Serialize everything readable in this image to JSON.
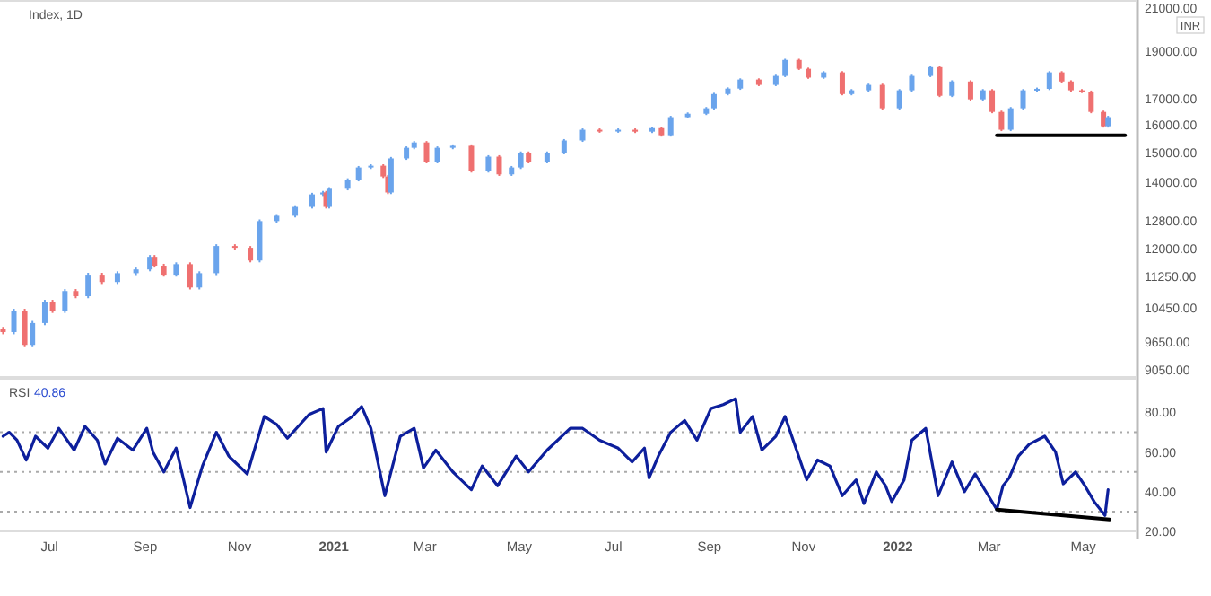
{
  "chart_data": [
    {
      "type": "candlestick",
      "title": "Index, 1D",
      "ylabel": "INR",
      "log": true,
      "tick_labels": "y",
      "xlim": [
        "2020-05-30",
        "2022-06-05"
      ],
      "ylim": [
        8900,
        21350
      ],
      "yticks": [
        {
          "value": 9050,
          "label": "9050.00"
        },
        {
          "value": 9650,
          "label": "9650.00"
        },
        {
          "value": 10450,
          "label": "10450.00"
        },
        {
          "value": 11250,
          "label": "11250.00"
        },
        {
          "value": 12000,
          "label": "12000.00"
        },
        {
          "value": 12800,
          "label": "12800.00"
        },
        {
          "value": 14000,
          "label": "14000.00"
        },
        {
          "value": 15000,
          "label": "15000.00"
        },
        {
          "value": 16000,
          "label": "16000.00"
        },
        {
          "value": 17000,
          "label": "17000.00"
        },
        {
          "value": 19000,
          "label": "19000.00"
        },
        {
          "value": 21000,
          "label": "21000.00"
        }
      ],
      "x": [
        "2020-06-01",
        "2020-06-08",
        "2020-06-15",
        "2020-06-20",
        "2020-06-28",
        "2020-07-03",
        "2020-07-11",
        "2020-07-18",
        "2020-07-26",
        "2020-08-04",
        "2020-08-14",
        "2020-08-26",
        "2020-09-04",
        "2020-09-07",
        "2020-09-13",
        "2020-09-21",
        "2020-09-30",
        "2020-10-06",
        "2020-10-17",
        "2020-10-29",
        "2020-11-08",
        "2020-11-14",
        "2020-11-25",
        "2020-12-07",
        "2020-12-18",
        "2020-12-25",
        "2020-12-27",
        "2020-12-29",
        "2021-01-10",
        "2021-01-17",
        "2021-01-25",
        "2021-02-02",
        "2021-02-05",
        "2021-02-07",
        "2021-02-17",
        "2021-02-22",
        "2021-03-02",
        "2021-03-09",
        "2021-03-19",
        "2021-03-31",
        "2021-04-11",
        "2021-04-18",
        "2021-04-26",
        "2021-05-02",
        "2021-05-07",
        "2021-05-19",
        "2021-05-30",
        "2021-06-11",
        "2021-06-22",
        "2021-07-04",
        "2021-07-15",
        "2021-07-26",
        "2021-08-01",
        "2021-08-07",
        "2021-08-18",
        "2021-08-30",
        "2021-09-04",
        "2021-09-13",
        "2021-09-21",
        "2021-10-03",
        "2021-10-14",
        "2021-10-20",
        "2021-10-29",
        "2021-11-04",
        "2021-11-14",
        "2021-11-26",
        "2021-12-02",
        "2021-12-13",
        "2021-12-22",
        "2022-01-02",
        "2022-01-10",
        "2022-01-22",
        "2022-01-28",
        "2022-02-05",
        "2022-02-17",
        "2022-02-25",
        "2022-03-03",
        "2022-03-09",
        "2022-03-15",
        "2022-03-23",
        "2022-04-01",
        "2022-04-09",
        "2022-04-17",
        "2022-04-23",
        "2022-04-30",
        "2022-05-06",
        "2022-05-14",
        "2022-05-17"
      ],
      "ohlc": [
        [
          9950,
          10000,
          9830,
          9880
        ],
        [
          9880,
          10430,
          9830,
          10380
        ],
        [
          10380,
          10430,
          9540,
          9590
        ],
        [
          9590,
          10140,
          9540,
          10090
        ],
        [
          10090,
          10650,
          10040,
          10600
        ],
        [
          10600,
          10650,
          10330,
          10380
        ],
        [
          10380,
          10920,
          10330,
          10870
        ],
        [
          10870,
          10920,
          10690,
          10740
        ],
        [
          10740,
          11340,
          10690,
          11290
        ],
        [
          11290,
          11340,
          11050,
          11100
        ],
        [
          11100,
          11380,
          11050,
          11330
        ],
        [
          11330,
          11480,
          11280,
          11430
        ],
        [
          11430,
          11820,
          11380,
          11770
        ],
        [
          11770,
          11820,
          11480,
          11530
        ],
        [
          11530,
          11580,
          11240,
          11290
        ],
        [
          11290,
          11620,
          11240,
          11570
        ],
        [
          11570,
          11620,
          10910,
          10960
        ],
        [
          10960,
          11380,
          10910,
          11330
        ],
        [
          11330,
          12120,
          11280,
          12070
        ],
        [
          12070,
          12120,
          11970,
          12020
        ],
        [
          12020,
          12070,
          11620,
          11670
        ],
        [
          11670,
          12840,
          11620,
          12790
        ],
        [
          12790,
          13000,
          12740,
          12950
        ],
        [
          12950,
          13270,
          12900,
          13220
        ],
        [
          13220,
          13660,
          13170,
          13610
        ],
        [
          13610,
          13720,
          13560,
          13670
        ],
        [
          13670,
          13720,
          13170,
          13220
        ],
        [
          13220,
          13840,
          13170,
          13790
        ],
        [
          13790,
          14130,
          13740,
          14080
        ],
        [
          14080,
          14540,
          14030,
          14490
        ],
        [
          14490,
          14600,
          14440,
          14550
        ],
        [
          14550,
          14600,
          14140,
          14190
        ],
        [
          14190,
          14240,
          13620,
          13670
        ],
        [
          13670,
          14850,
          13620,
          14800
        ],
        [
          14800,
          15220,
          14750,
          15170
        ],
        [
          15170,
          15410,
          15120,
          15360
        ],
        [
          15360,
          15410,
          14630,
          14680
        ],
        [
          14680,
          15220,
          14630,
          15170
        ],
        [
          15170,
          15290,
          15120,
          15240
        ],
        [
          15240,
          15290,
          14320,
          14370
        ],
        [
          14370,
          14910,
          14320,
          14860
        ],
        [
          14860,
          14910,
          14210,
          14260
        ],
        [
          14260,
          14540,
          14210,
          14490
        ],
        [
          14490,
          15040,
          14440,
          14990
        ],
        [
          14990,
          15040,
          14630,
          14680
        ],
        [
          14680,
          15040,
          14630,
          14990
        ],
        [
          14990,
          15480,
          14940,
          15430
        ],
        [
          15430,
          15870,
          15380,
          15820
        ],
        [
          15820,
          15870,
          15710,
          15760
        ],
        [
          15760,
          15870,
          15710,
          15820
        ],
        [
          15820,
          15870,
          15700,
          15750
        ],
        [
          15750,
          15930,
          15700,
          15880
        ],
        [
          15880,
          15930,
          15570,
          15620
        ],
        [
          15620,
          16340,
          15570,
          16290
        ],
        [
          16290,
          16470,
          16240,
          16420
        ],
        [
          16420,
          16680,
          16370,
          16630
        ],
        [
          16630,
          17240,
          16580,
          17190
        ],
        [
          17190,
          17460,
          17140,
          17410
        ],
        [
          17410,
          17830,
          17360,
          17780
        ],
        [
          17780,
          17830,
          17510,
          17560
        ],
        [
          17560,
          17980,
          17510,
          17930
        ],
        [
          17930,
          18660,
          17880,
          18610
        ],
        [
          18610,
          18660,
          18180,
          18230
        ],
        [
          18230,
          18280,
          17810,
          17860
        ],
        [
          17860,
          18130,
          17810,
          18080
        ],
        [
          18080,
          18130,
          17140,
          17190
        ],
        [
          17190,
          17390,
          17140,
          17340
        ],
        [
          17340,
          17610,
          17290,
          17560
        ],
        [
          17560,
          17610,
          16580,
          16630
        ],
        [
          16630,
          17390,
          16580,
          17340
        ],
        [
          17340,
          17980,
          17290,
          17930
        ],
        [
          17930,
          18350,
          17880,
          18300
        ],
        [
          18300,
          18350,
          17070,
          17120
        ],
        [
          17120,
          17750,
          17070,
          17700
        ],
        [
          17700,
          17750,
          16930,
          16980
        ],
        [
          16980,
          17390,
          16930,
          17340
        ],
        [
          17340,
          17390,
          16440,
          16490
        ],
        [
          16490,
          16540,
          15770,
          15820
        ],
        [
          15820,
          16680,
          15770,
          16630
        ],
        [
          16630,
          17390,
          16580,
          17340
        ],
        [
          17340,
          17450,
          17290,
          17400
        ],
        [
          17400,
          18130,
          17350,
          18080
        ],
        [
          18080,
          18130,
          17650,
          17700
        ],
        [
          17700,
          17750,
          17290,
          17340
        ],
        [
          17340,
          17390,
          17230,
          17280
        ],
        [
          17280,
          17330,
          16440,
          16490
        ],
        [
          16490,
          16540,
          15900,
          15950
        ],
        [
          15950,
          16340,
          15900,
          16290
        ]
      ],
      "colors": [
        "#ef7070",
        "#6aa4ec",
        "#ef7070",
        "#6aa4ec",
        "#6aa4ec",
        "#ef7070",
        "#6aa4ec",
        "#ef7070",
        "#6aa4ec",
        "#ef7070",
        "#6aa4ec",
        "#6aa4ec",
        "#6aa4ec",
        "#ef7070",
        "#ef7070",
        "#6aa4ec",
        "#ef7070",
        "#6aa4ec",
        "#6aa4ec",
        "#ef7070",
        "#ef7070",
        "#6aa4ec",
        "#6aa4ec",
        "#6aa4ec",
        "#6aa4ec",
        "#6aa4ec",
        "#ef7070",
        "#6aa4ec",
        "#6aa4ec",
        "#6aa4ec",
        "#6aa4ec",
        "#ef7070",
        "#ef7070",
        "#6aa4ec",
        "#6aa4ec",
        "#6aa4ec",
        "#ef7070",
        "#6aa4ec",
        "#6aa4ec",
        "#ef7070",
        "#6aa4ec",
        "#ef7070",
        "#6aa4ec",
        "#6aa4ec",
        "#ef7070",
        "#6aa4ec",
        "#6aa4ec",
        "#6aa4ec",
        "#ef7070",
        "#6aa4ec",
        "#ef7070",
        "#6aa4ec",
        "#ef7070",
        "#6aa4ec",
        "#6aa4ec",
        "#6aa4ec",
        "#6aa4ec",
        "#6aa4ec",
        "#6aa4ec",
        "#ef7070",
        "#6aa4ec",
        "#6aa4ec",
        "#ef7070",
        "#ef7070",
        "#6aa4ec",
        "#ef7070",
        "#6aa4ec",
        "#6aa4ec",
        "#ef7070",
        "#6aa4ec",
        "#6aa4ec",
        "#6aa4ec",
        "#ef7070",
        "#6aa4ec",
        "#ef7070",
        "#6aa4ec",
        "#ef7070",
        "#ef7070",
        "#6aa4ec",
        "#6aa4ec",
        "#6aa4ec",
        "#6aa4ec",
        "#ef7070",
        "#ef7070",
        "#ef7070",
        "#ef7070",
        "#ef7070",
        "#6aa4ec"
      ],
      "series": [
        {
          "type": "line",
          "color": "#000000",
          "x": [
            "2022-03-06",
            "2022-05-28"
          ],
          "values": [
            15620,
            15620
          ]
        }
      ]
    },
    {
      "type": "line",
      "title": "RSI",
      "annotations": [
        "40.86"
      ],
      "xlim": [
        "2020-05-30",
        "2022-06-05"
      ],
      "ylim": [
        20,
        97
      ],
      "yticks": [
        {
          "value": 20,
          "label": "20.00"
        },
        {
          "value": 40,
          "label": "40.00"
        },
        {
          "value": 60,
          "label": "60.00"
        },
        {
          "value": 80,
          "label": "80.00"
        }
      ],
      "xticks": [
        {
          "value": "2020-07-01",
          "label": "Jul"
        },
        {
          "value": "2020-09-01",
          "label": "Sep"
        },
        {
          "value": "2020-11-01",
          "label": "Nov"
        },
        {
          "value": "2021-01-01",
          "label": "2021"
        },
        {
          "value": "2021-03-01",
          "label": "Mar"
        },
        {
          "value": "2021-05-01",
          "label": "May"
        },
        {
          "value": "2021-07-01",
          "label": "Jul"
        },
        {
          "value": "2021-09-01",
          "label": "Sep"
        },
        {
          "value": "2021-11-01",
          "label": "Nov"
        },
        {
          "value": "2022-01-01",
          "label": "2022"
        },
        {
          "value": "2022-03-01",
          "label": "Mar"
        },
        {
          "value": "2022-05-01",
          "label": "May"
        }
      ],
      "ref_lines": [
        {
          "axis": "y",
          "value": 70,
          "color": "#aaaaaa",
          "line_style": "dotted"
        },
        {
          "axis": "y",
          "value": 50,
          "color": "#aaaaaa",
          "line_style": "dotted"
        },
        {
          "axis": "y",
          "value": 30,
          "color": "#aaaaaa",
          "line_style": "dotted"
        }
      ],
      "series": [
        {
          "color": "#0d1f9c",
          "x": [
            "2020-06-01",
            "2020-06-05",
            "2020-06-10",
            "2020-06-16",
            "2020-06-22",
            "2020-06-30",
            "2020-07-07",
            "2020-07-17",
            "2020-07-24",
            "2020-08-01",
            "2020-08-06",
            "2020-08-14",
            "2020-08-24",
            "2020-09-02",
            "2020-09-06",
            "2020-09-13",
            "2020-09-21",
            "2020-09-30",
            "2020-10-08",
            "2020-10-17",
            "2020-10-25",
            "2020-11-06",
            "2020-11-17",
            "2020-11-25",
            "2020-12-02",
            "2020-12-16",
            "2020-12-25",
            "2020-12-27",
            "2021-01-04",
            "2021-01-13",
            "2021-01-19",
            "2021-01-25",
            "2021-02-03",
            "2021-02-13",
            "2021-02-22",
            "2021-02-28",
            "2021-03-08",
            "2021-03-19",
            "2021-03-31",
            "2021-04-07",
            "2021-04-17",
            "2021-04-29",
            "2021-05-07",
            "2021-05-19",
            "2021-06-03",
            "2021-06-11",
            "2021-06-22",
            "2021-07-04",
            "2021-07-13",
            "2021-07-21",
            "2021-07-24",
            "2021-07-30",
            "2021-08-07",
            "2021-08-16",
            "2021-08-24",
            "2021-09-02",
            "2021-09-10",
            "2021-09-18",
            "2021-09-21",
            "2021-09-29",
            "2021-10-05",
            "2021-10-14",
            "2021-10-20",
            "2021-11-03",
            "2021-11-10",
            "2021-11-18",
            "2021-11-26",
            "2021-12-05",
            "2021-12-10",
            "2021-12-18",
            "2021-12-24",
            "2021-12-28",
            "2022-01-05",
            "2022-01-10",
            "2022-01-19",
            "2022-01-27",
            "2022-02-05",
            "2022-02-13",
            "2022-02-20",
            "2022-03-06",
            "2022-03-10",
            "2022-03-14",
            "2022-03-20",
            "2022-03-27",
            "2022-04-06",
            "2022-04-13",
            "2022-04-18",
            "2022-04-26",
            "2022-05-02",
            "2022-05-08",
            "2022-05-15",
            "2022-05-17"
          ],
          "values": [
            68,
            70,
            66,
            56,
            68,
            62,
            72,
            61,
            73,
            66,
            54,
            67,
            61,
            72,
            60,
            50,
            62,
            32,
            53,
            70,
            58,
            49,
            78,
            74,
            67,
            79,
            82,
            60,
            73,
            78,
            83,
            72,
            38,
            68,
            72,
            52,
            61,
            50,
            41,
            53,
            43,
            58,
            50,
            61,
            72,
            72,
            66,
            62,
            55,
            62,
            47,
            58,
            70,
            76,
            66,
            82,
            84,
            87,
            70,
            78,
            61,
            68,
            78,
            46,
            56,
            53,
            38,
            46,
            34,
            50,
            43,
            35,
            46,
            66,
            72,
            38,
            55,
            40,
            49,
            31,
            43,
            47,
            58,
            64,
            68,
            60,
            44,
            50,
            43,
            35,
            28,
            41
          ]
        },
        {
          "type": "line",
          "color": "#000000",
          "x": [
            "2022-03-06",
            "2022-05-18"
          ],
          "values": [
            31,
            26
          ]
        }
      ]
    }
  ]
}
